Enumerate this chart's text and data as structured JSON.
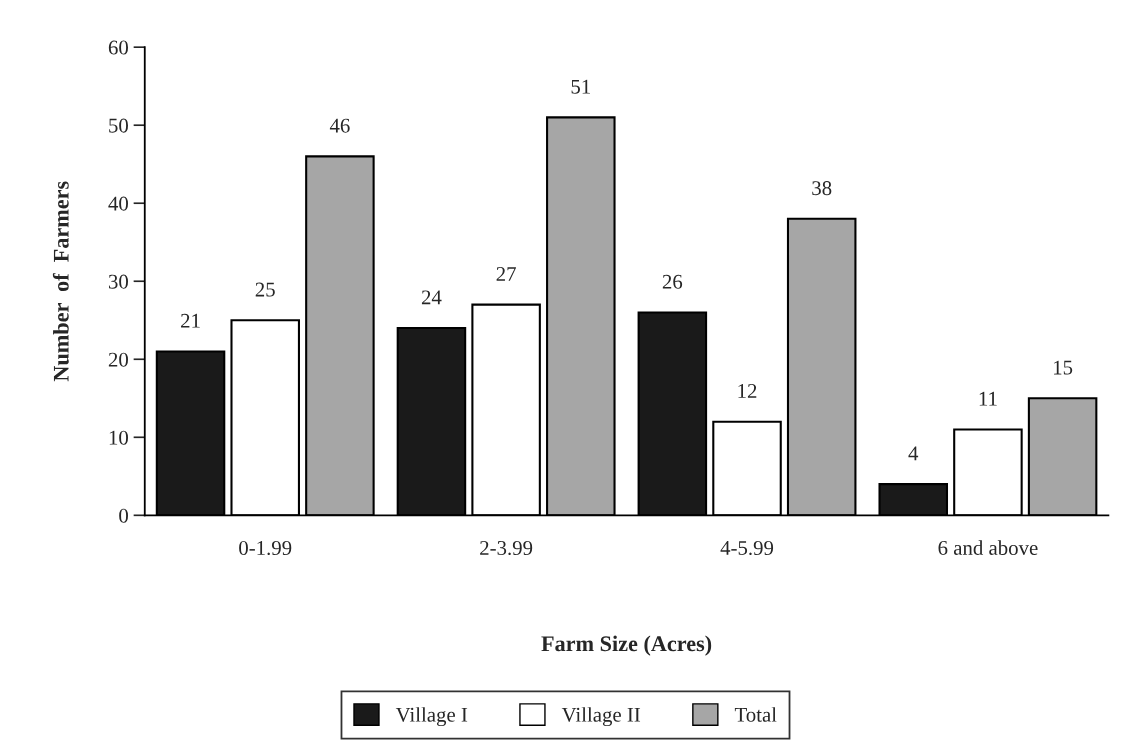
{
  "chart_data": {
    "type": "bar",
    "xlabel": "Farm Size (Acres)",
    "ylabel": "Number  of  Farmers",
    "categories": [
      "0-1.99",
      "2-3.99",
      "4-5.99",
      "6 and above"
    ],
    "series": [
      {
        "name": "Village I",
        "color": "#1a1a1a",
        "values": [
          21,
          24,
          26,
          4
        ]
      },
      {
        "name": "Village II",
        "color": "#ffffff",
        "values": [
          25,
          27,
          12,
          11
        ]
      },
      {
        "name": "Total",
        "color": "#a6a6a6",
        "values": [
          46,
          51,
          38,
          15
        ]
      }
    ],
    "ylim": [
      0,
      60
    ],
    "yticks": [
      0,
      10,
      20,
      30,
      40,
      50,
      60
    ],
    "grid": false,
    "legend": "bottom",
    "data_labels": true
  }
}
